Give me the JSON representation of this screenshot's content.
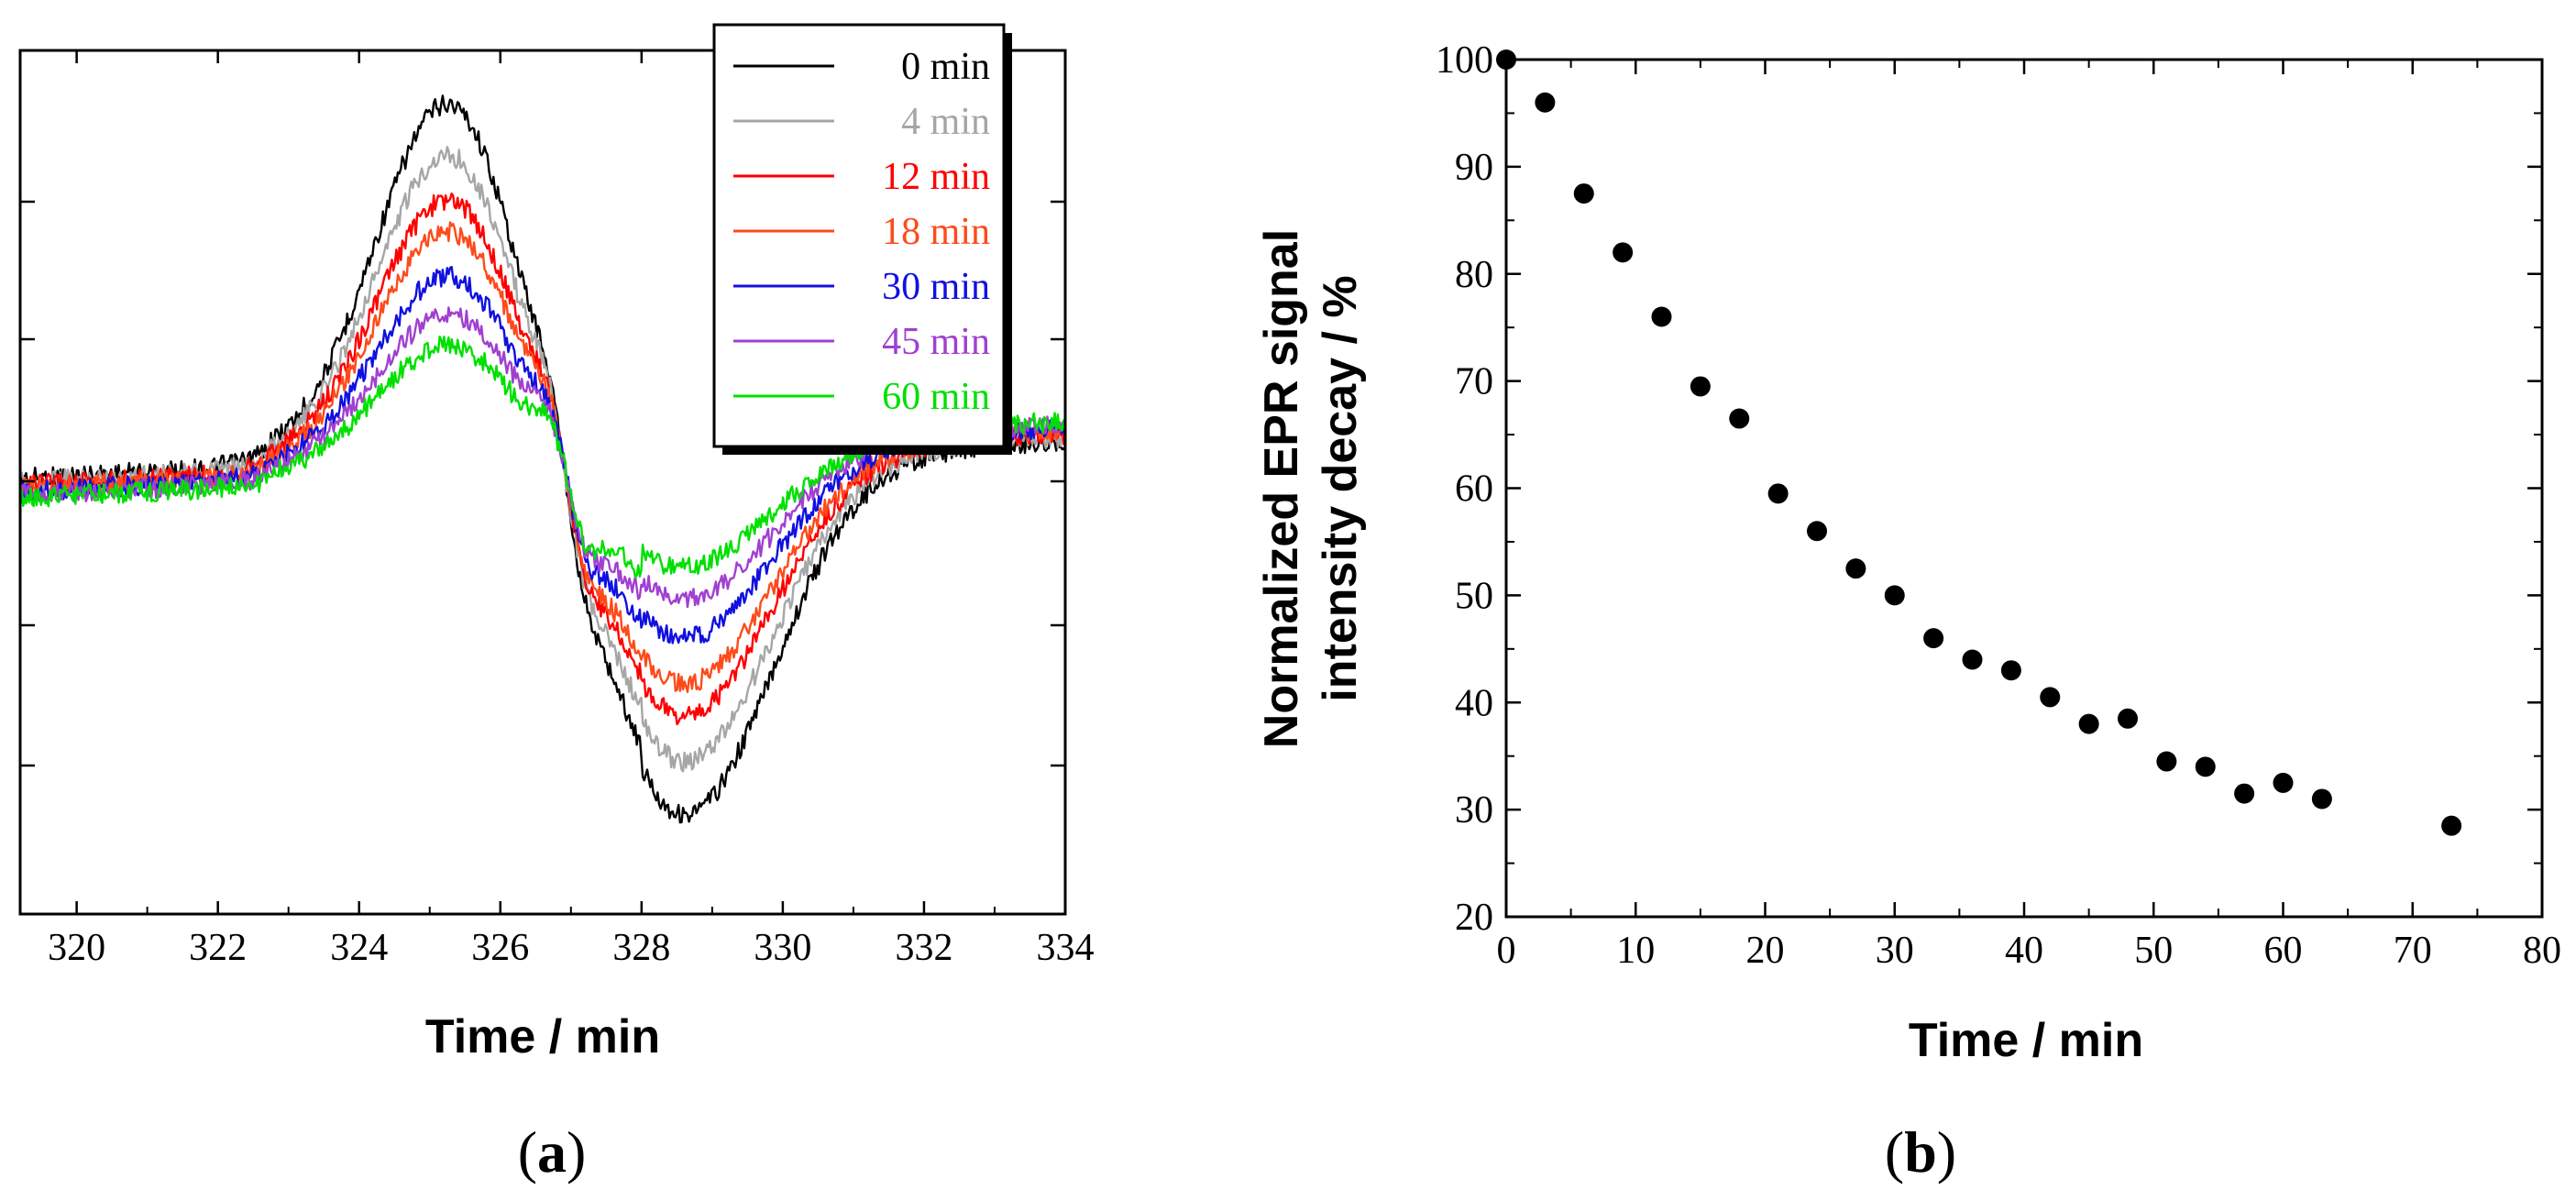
{
  "chart_data": [
    {
      "panel": "a",
      "type": "line",
      "xlabel": "Time / min",
      "xlim": [
        319.2,
        334
      ],
      "xticks": [
        320,
        322,
        324,
        326,
        328,
        330,
        332,
        334
      ],
      "xtick_labels": [
        "320",
        "322",
        "324",
        "326",
        "328",
        "330",
        "332",
        "334"
      ],
      "ylabel": "",
      "yticks_unlabeled": true,
      "legend_position": "top-right",
      "series": [
        {
          "name": "0 min",
          "color": "#000000",
          "scale": 1.0,
          "offset": 0.0
        },
        {
          "name": "4 min",
          "color": "#a6a6a6",
          "scale": 0.86,
          "offset": 0.02
        },
        {
          "name": "12 min",
          "color": "#ff0000",
          "scale": 0.74,
          "offset": 0.04
        },
        {
          "name": "18 min",
          "color": "#ff4a1a",
          "scale": 0.66,
          "offset": 0.05
        },
        {
          "name": "30 min",
          "color": "#1010e0",
          "scale": 0.54,
          "offset": 0.06
        },
        {
          "name": "45 min",
          "color": "#a040d0",
          "scale": 0.44,
          "offset": 0.07
        },
        {
          "name": "60 min",
          "color": "#00e000",
          "scale": 0.36,
          "offset": 0.08
        }
      ],
      "panel_label": {
        "open": "(",
        "letter": "a",
        "close": ")"
      }
    },
    {
      "panel": "b",
      "type": "scatter",
      "xlabel": "Time / min",
      "ylabel_line1": "Normalized EPR signal",
      "ylabel_line2": "intensity decay / %",
      "xlim": [
        0,
        80
      ],
      "ylim": [
        20,
        100
      ],
      "xticks": [
        0,
        10,
        20,
        30,
        40,
        50,
        60,
        70,
        80
      ],
      "xtick_labels": [
        "0",
        "10",
        "20",
        "30",
        "40",
        "50",
        "60",
        "70",
        "80"
      ],
      "yticks": [
        20,
        30,
        40,
        50,
        60,
        70,
        80,
        90,
        100
      ],
      "ytick_labels": [
        "20",
        "30",
        "40",
        "50",
        "60",
        "70",
        "80",
        "90",
        "100"
      ],
      "x": [
        0,
        3,
        6,
        9,
        12,
        15,
        18,
        21,
        24,
        27,
        30,
        33,
        36,
        39,
        42,
        45,
        48,
        51,
        54,
        57,
        60,
        63,
        73
      ],
      "y": [
        100,
        96,
        87.5,
        82,
        76,
        69.5,
        66.5,
        59.5,
        56,
        52.5,
        50,
        46,
        44,
        43,
        40.5,
        38,
        38.5,
        34.5,
        34,
        31.5,
        32.5,
        31,
        28.5
      ],
      "marker_color": "#000000",
      "panel_label": {
        "open": "(",
        "letter": "b",
        "close": ")"
      }
    }
  ]
}
